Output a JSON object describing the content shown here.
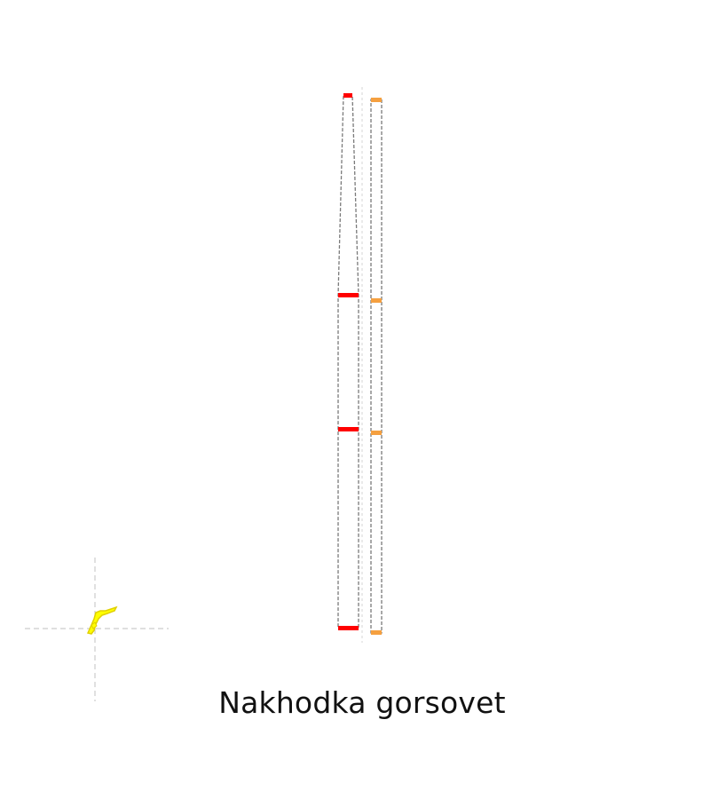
{
  "map": {
    "title": "Nakhodka gorsovet"
  },
  "colors": {
    "region_highlight": "#ffff00",
    "region_outline": "#e0d000",
    "boundary_dash": "#7a7a7a",
    "guide_line": "#cccccc",
    "scale_major_mark": "#ff0000",
    "scale_minor_mark": "#f5a040",
    "background": "#ffffff"
  }
}
